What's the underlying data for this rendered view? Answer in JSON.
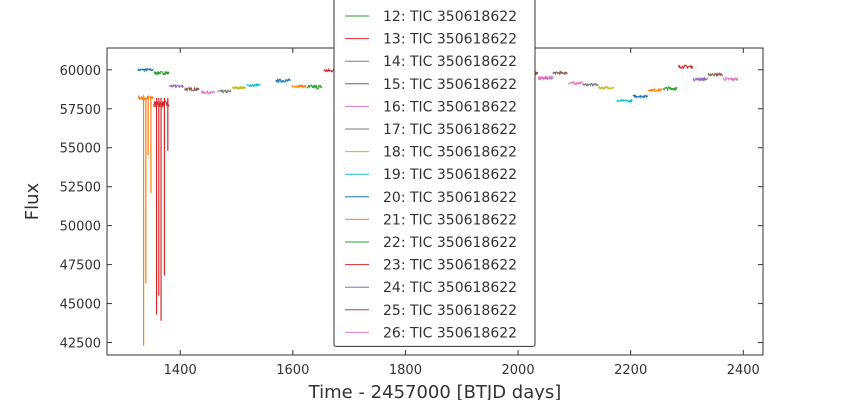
{
  "chart_data": {
    "type": "line",
    "xlabel": "Time - 2457000 [BTJD days]",
    "ylabel": "Flux",
    "xlim": [
      1270,
      2435
    ],
    "ylim": [
      41700,
      61400
    ],
    "x_ticks": [
      1400,
      1600,
      1800,
      2000,
      2200,
      2400
    ],
    "x_tick_labels": [
      "1400",
      "1600",
      "1800",
      "2000",
      "2200",
      "2400"
    ],
    "y_ticks": [
      42500,
      45000,
      47500,
      50000,
      52500,
      55000,
      57500,
      60000
    ],
    "y_tick_labels": [
      "42500",
      "45000",
      "47500",
      "50000",
      "52500",
      "55000",
      "57500",
      "60000"
    ],
    "grid": false,
    "legend_position": "top-center",
    "series": [
      {
        "name": "12: TIC 350618622",
        "color": "#2ca02c",
        "x_range": [
          1683,
          1710
        ],
        "flux": 59950,
        "spread": 200
      },
      {
        "name": "13: TIC 350618622",
        "color": "#d62728",
        "x_range": [
          1683,
          1710
        ],
        "flux": 60000,
        "spread": 200
      },
      {
        "name": "14: TIC 350618622",
        "color": "#9467bd",
        "x_range": [
          1711,
          1737
        ],
        "flux": 60100,
        "spread": 200
      },
      {
        "name": "15: TIC 350618622",
        "color": "#8c564b",
        "x_range": [
          1738,
          1763
        ],
        "flux": 60150,
        "spread": 200
      },
      {
        "name": "16: TIC 350618622",
        "color": "#e377c2",
        "x_range": [
          1764,
          1789
        ],
        "flux": 60100,
        "spread": 200
      },
      {
        "name": "17: TIC 350618622",
        "color": "#7f7f7f",
        "x_range": [
          1790,
          1815
        ],
        "flux": 60050,
        "spread": 200
      },
      {
        "name": "18: TIC 350618622",
        "color": "#bcbd22",
        "x_range": [
          1816,
          1841
        ],
        "flux": 60000,
        "spread": 200
      },
      {
        "name": "19: TIC 350618622",
        "color": "#17becf",
        "x_range": [
          1842,
          1868
        ],
        "flux": 59950,
        "spread": 200
      },
      {
        "name": "20: TIC 350618622",
        "color": "#1f77b4",
        "x_range": [
          1869,
          1897
        ],
        "flux": 59900,
        "spread": 200
      },
      {
        "name": "21: TIC 350618622",
        "color": "#ff7f0e",
        "x_range": [
          1898,
          1924
        ],
        "flux": 59850,
        "spread": 200
      },
      {
        "name": "22: TIC 350618622",
        "color": "#2ca02c",
        "x_range": [
          1925,
          1953
        ],
        "flux": 59800,
        "spread": 200
      },
      {
        "name": "23: TIC 350618622",
        "color": "#d62728",
        "x_range": [
          1954,
          1982
        ],
        "flux": 59700,
        "spread": 200
      },
      {
        "name": "24: TIC 350618622",
        "color": "#9467bd",
        "x_range": [
          1983,
          2009
        ],
        "flux": 59500,
        "spread": 200
      },
      {
        "name": "25: TIC 350618622",
        "color": "#8c564b",
        "x_range": [
          2010,
          2035
        ],
        "flux": 59750,
        "spread": 250
      },
      {
        "name": "26: TIC 350618622",
        "color": "#e377c2",
        "x_range": [
          2036,
          2062
        ],
        "flux": 59500,
        "spread": 200
      }
    ],
    "extra_segments": [
      {
        "color": "#1f77b4",
        "x_range": [
          1325,
          1352
        ],
        "flux": 60000,
        "spread": 150
      },
      {
        "color": "#ff7f0e",
        "x_range": [
          1325,
          1352
        ],
        "flux": 58200,
        "spread": 300
      },
      {
        "color": "#2ca02c",
        "x_range": [
          1353,
          1380
        ],
        "flux": 59800,
        "spread": 200
      },
      {
        "color": "#d62728",
        "x_range": [
          1353,
          1380
        ],
        "flux": 57800,
        "spread": 400
      },
      {
        "color": "#9467bd",
        "x_range": [
          1381,
          1406
        ],
        "flux": 58950,
        "spread": 150
      },
      {
        "color": "#8c564b",
        "x_range": [
          1408,
          1434
        ],
        "flux": 58750,
        "spread": 200
      },
      {
        "color": "#e377c2",
        "x_range": [
          1437,
          1462
        ],
        "flux": 58550,
        "spread": 150
      },
      {
        "color": "#7f7f7f",
        "x_range": [
          1466,
          1490
        ],
        "flux": 58600,
        "spread": 200
      },
      {
        "color": "#bcbd22",
        "x_range": [
          1492,
          1516
        ],
        "flux": 58850,
        "spread": 150
      },
      {
        "color": "#17becf",
        "x_range": [
          1518,
          1542
        ],
        "flux": 59000,
        "spread": 150
      },
      {
        "color": "#1f77b4",
        "x_range": [
          1570,
          1596
        ],
        "flux": 59300,
        "spread": 200
      },
      {
        "color": "#ff7f0e",
        "x_range": [
          1598,
          1624
        ],
        "flux": 58950,
        "spread": 150
      },
      {
        "color": "#2ca02c",
        "x_range": [
          1625,
          1652
        ],
        "flux": 58900,
        "spread": 250
      },
      {
        "color": "#d62728",
        "x_range": [
          1655,
          1682
        ],
        "flux": 59950,
        "spread": 200
      },
      {
        "color": "#9467bd",
        "x_range": [
          2036,
          2062
        ],
        "flux": 59450,
        "spread": 150
      },
      {
        "color": "#8c564b",
        "x_range": [
          2062,
          2088
        ],
        "flux": 59800,
        "spread": 150
      },
      {
        "color": "#e377c2",
        "x_range": [
          2089,
          2115
        ],
        "flux": 59150,
        "spread": 150
      },
      {
        "color": "#7f7f7f",
        "x_range": [
          2116,
          2142
        ],
        "flux": 59050,
        "spread": 150
      },
      {
        "color": "#bcbd22",
        "x_range": [
          2143,
          2170
        ],
        "flux": 58850,
        "spread": 150
      },
      {
        "color": "#17becf",
        "x_range": [
          2175,
          2203
        ],
        "flux": 58000,
        "spread": 150
      },
      {
        "color": "#1f77b4",
        "x_range": [
          2204,
          2230
        ],
        "flux": 58300,
        "spread": 150
      },
      {
        "color": "#ff7f0e",
        "x_range": [
          2231,
          2256
        ],
        "flux": 58700,
        "spread": 150
      },
      {
        "color": "#2ca02c",
        "x_range": [
          2257,
          2283
        ],
        "flux": 58800,
        "spread": 200
      },
      {
        "color": "#d62728",
        "x_range": [
          2284,
          2310
        ],
        "flux": 60200,
        "spread": 200
      },
      {
        "color": "#9467bd",
        "x_range": [
          2311,
          2336
        ],
        "flux": 59400,
        "spread": 200
      },
      {
        "color": "#8c564b",
        "x_range": [
          2337,
          2363
        ],
        "flux": 59700,
        "spread": 150
      },
      {
        "color": "#e377c2",
        "x_range": [
          2364,
          2390
        ],
        "flux": 59400,
        "spread": 200
      }
    ],
    "dips": [
      {
        "color": "#ff7f0e",
        "x": 1335,
        "flux_min": 42300
      },
      {
        "color": "#ff7f0e",
        "x": 1339,
        "flux_min": 46300
      },
      {
        "color": "#ff7f0e",
        "x": 1343,
        "flux_min": 54500
      },
      {
        "color": "#ff7f0e",
        "x": 1348,
        "flux_min": 52100
      },
      {
        "color": "#d62728",
        "x": 1358,
        "flux_min": 44300
      },
      {
        "color": "#d62728",
        "x": 1362,
        "flux_min": 45500
      },
      {
        "color": "#d62728",
        "x": 1366,
        "flux_min": 43900
      },
      {
        "color": "#d62728",
        "x": 1372,
        "flux_min": 46800
      },
      {
        "color": "#d62728",
        "x": 1378,
        "flux_min": 54800
      }
    ]
  }
}
